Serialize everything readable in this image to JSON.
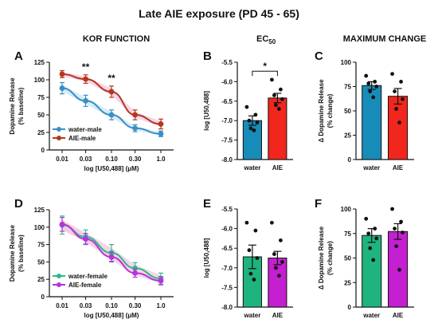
{
  "figure": {
    "title": "Late AIE exposure (PD 45 - 65)",
    "columns": {
      "kor": "KOR FUNCTION",
      "ec50": "EC",
      "ec50_sub": "50",
      "max": "MAXIMUM CHANGE"
    }
  },
  "colors": {
    "water_male": "#3a8fc4",
    "aie_male": "#b5361e",
    "water_female": "#2dbb8a",
    "aie_female": "#b634d9",
    "bar_water_male": "#178cb8",
    "bar_aie_male": "#f1261d",
    "bar_water_female": "#1fb47d",
    "bar_aie_female": "#c41fd0",
    "ci_pink": "#f2c4e0",
    "ci_blue": "#c6e4f4"
  },
  "chart_data": [
    {
      "panel": "A",
      "type": "line",
      "xlabel": "log [U50,488] (μM)",
      "ylabel": "Dopamine Release",
      "ylabel2": "(% baseline)",
      "x": [
        0.01,
        0.03,
        0.1,
        0.3,
        1.0
      ],
      "xticklabels": [
        "0.01",
        "0.03",
        "0.10",
        "0.30",
        "1.0"
      ],
      "ylim": [
        0,
        125
      ],
      "yticks": [
        0,
        25,
        50,
        75,
        100,
        125
      ],
      "series": [
        {
          "name": "water-male",
          "values": [
            88,
            70,
            50,
            31,
            23
          ],
          "errors": [
            8,
            8,
            7,
            5,
            4
          ]
        },
        {
          "name": "AIE-male",
          "values": [
            108,
            101,
            83,
            50,
            37
          ],
          "errors": [
            5,
            6,
            8,
            7,
            7
          ]
        }
      ],
      "annotations": [
        {
          "x": 0.03,
          "text": "**"
        },
        {
          "x": 0.1,
          "text": "**"
        }
      ],
      "legend": "bottom-left"
    },
    {
      "panel": "B",
      "type": "bar",
      "ylabel": "log [U50,488]",
      "categories": [
        "water",
        "AIE"
      ],
      "values": [
        -7.0,
        -6.42
      ],
      "errors": [
        0.12,
        0.12
      ],
      "ylim": [
        -8.0,
        -5.5
      ],
      "yticks": [
        "-5.5",
        "-6.0",
        "-6.5",
        "-7.0",
        "-7.5",
        "-8.0"
      ],
      "points": [
        [
          -6.65,
          -6.85,
          -7.0,
          -7.05,
          -7.2,
          -7.25
        ],
        [
          -5.95,
          -6.2,
          -6.35,
          -6.45,
          -6.6,
          -6.7
        ]
      ],
      "significance": "*"
    },
    {
      "panel": "C",
      "type": "bar",
      "ylabel": "Δ Dopamine Release",
      "ylabel2": "(% change)",
      "categories": [
        "water",
        "AIE"
      ],
      "values": [
        76,
        65
      ],
      "errors": [
        4,
        8
      ],
      "ylim": [
        0,
        100
      ],
      "yticks": [
        "0",
        "25",
        "50",
        "75",
        "100"
      ],
      "points": [
        [
          86,
          80,
          78,
          75,
          70,
          64
        ],
        [
          88,
          80,
          70,
          62,
          52,
          38
        ]
      ]
    },
    {
      "panel": "D",
      "type": "line",
      "xlabel": "log [U50,488] (μM)",
      "ylabel": "Dopamine Release",
      "ylabel2": "(% baseline)",
      "x": [
        0.01,
        0.03,
        0.1,
        0.3,
        1.0
      ],
      "xticklabels": [
        "0.01",
        "0.03",
        "0.10",
        "0.30",
        "1.0"
      ],
      "ylim": [
        0,
        125
      ],
      "yticks": [
        0,
        25,
        50,
        75,
        100,
        125
      ],
      "series": [
        {
          "name": "water-female",
          "values": [
            103,
            86,
            63,
            41,
            26
          ],
          "errors": [
            13,
            10,
            12,
            8,
            8
          ]
        },
        {
          "name": "AIE-female",
          "values": [
            104,
            83,
            57,
            34,
            23
          ],
          "errors": [
            10,
            8,
            7,
            6,
            6
          ]
        }
      ],
      "legend": "bottom-left"
    },
    {
      "panel": "E",
      "type": "bar",
      "ylabel": "log [U50,488]",
      "categories": [
        "water",
        "AIE"
      ],
      "values": [
        -6.72,
        -6.75
      ],
      "errors": [
        0.3,
        0.17
      ],
      "ylim": [
        -8.0,
        -5.5
      ],
      "yticks": [
        "-5.5",
        "-6.0",
        "-6.5",
        "-7.0",
        "-7.5",
        "-8.0"
      ],
      "points": [
        [
          -5.85,
          -6.05,
          -6.55,
          -6.75,
          -7.15,
          -7.3
        ],
        [
          -5.85,
          -6.3,
          -6.65,
          -6.85,
          -7.0,
          -7.2
        ]
      ]
    },
    {
      "panel": "F",
      "type": "bar",
      "ylabel": "Δ Dopamine Release",
      "ylabel2": "(% change)",
      "categories": [
        "water",
        "AIE"
      ],
      "values": [
        73,
        77
      ],
      "errors": [
        7,
        8
      ],
      "ylim": [
        0,
        100
      ],
      "yticks": [
        "0",
        "25",
        "50",
        "75",
        "100"
      ],
      "points": [
        [
          90,
          80,
          75,
          70,
          60,
          48
        ],
        [
          100,
          87,
          80,
          76,
          62,
          38
        ]
      ]
    }
  ]
}
